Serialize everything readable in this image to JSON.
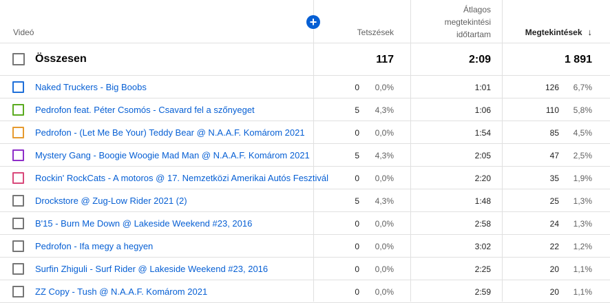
{
  "header": {
    "video_label": "Videó",
    "likes_label": "Tetszések",
    "avg_view_line1": "Átlagos",
    "avg_view_line2": "megtekintési",
    "avg_view_line3": "időtartam",
    "views_label": "Megtekintések",
    "add_icon": "plus-icon",
    "sort_icon": "arrow-down-icon"
  },
  "total": {
    "label": "Összesen",
    "likes": "117",
    "avg_duration": "2:09",
    "views": "1 891"
  },
  "rows": [
    {
      "title": "Naked Truckers - Big Boobs",
      "likes": "0",
      "likes_pct": "0,0%",
      "avg": "1:01",
      "views": "126",
      "views_pct": "6,7%",
      "color": "#1e6fd9"
    },
    {
      "title": "Pedrofon feat. Péter Csomós - Csavard fel a szőnyeget",
      "likes": "5",
      "likes_pct": "4,3%",
      "avg": "1:06",
      "views": "110",
      "views_pct": "5,8%",
      "color": "#5aaa1f"
    },
    {
      "title": "Pedrofon - (Let Me Be Your) Teddy Bear @ N.A.A.F. Komárom 2021",
      "likes": "0",
      "likes_pct": "0,0%",
      "avg": "1:54",
      "views": "85",
      "views_pct": "4,5%",
      "color": "#e69a2e"
    },
    {
      "title": "Mystery Gang - Boogie Woogie Mad Man @ N.A.A.F. Komárom 2021",
      "likes": "5",
      "likes_pct": "4,3%",
      "avg": "2:05",
      "views": "47",
      "views_pct": "2,5%",
      "color": "#8e2ec9"
    },
    {
      "title": "Rockin' RockCats - A motoros @ 17. Nemzetközi Amerikai Autós Fesztivál",
      "likes": "0",
      "likes_pct": "0,0%",
      "avg": "2:20",
      "views": "35",
      "views_pct": "1,9%",
      "color": "#d9487a"
    },
    {
      "title": "Drockstore @ Zug-Low Rider 2021 (2)",
      "likes": "5",
      "likes_pct": "4,3%",
      "avg": "1:48",
      "views": "25",
      "views_pct": "1,3%",
      "color": "#757575"
    },
    {
      "title": "B'15 - Burn Me Down @ Lakeside Weekend #23, 2016",
      "likes": "0",
      "likes_pct": "0,0%",
      "avg": "2:58",
      "views": "24",
      "views_pct": "1,3%",
      "color": "#757575"
    },
    {
      "title": "Pedrofon - Ifa megy a hegyen",
      "likes": "0",
      "likes_pct": "0,0%",
      "avg": "3:02",
      "views": "22",
      "views_pct": "1,2%",
      "color": "#757575"
    },
    {
      "title": "Surfin Zhiguli - Surf Rider @ Lakeside Weekend #23, 2016",
      "likes": "0",
      "likes_pct": "0,0%",
      "avg": "2:25",
      "views": "20",
      "views_pct": "1,1%",
      "color": "#757575"
    },
    {
      "title": "ZZ Copy - Tush @ N.A.A.F. Komárom 2021",
      "likes": "0",
      "likes_pct": "0,0%",
      "avg": "2:59",
      "views": "20",
      "views_pct": "1,1%",
      "color": "#757575"
    }
  ]
}
